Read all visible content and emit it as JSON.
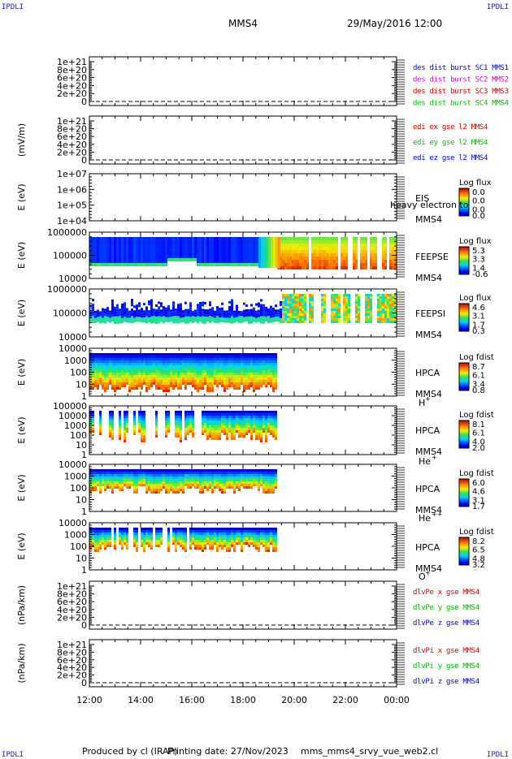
{
  "header": {
    "corner_label": "IPDLI",
    "spacecraft": "MMS4",
    "datetime": "29/May/2016 12:00"
  },
  "footer": {
    "produced": "Produced by cl (IRAP)",
    "printing": "Printing date: 27/Nov/2023",
    "script": "mms_mms4_srvy_vue_web2.cl"
  },
  "colors": {
    "red": "#cc0000",
    "magenta": "#cc00cc",
    "green": "#00bb00",
    "blue": "#0000cc",
    "dashed_zero": "#000000"
  },
  "x_axis": {
    "ticks": [
      "12:00",
      "14:00",
      "16:00",
      "18:00",
      "20:00",
      "22:00",
      "00:00"
    ],
    "range_hours": [
      12,
      24
    ]
  },
  "chart_data": [
    {
      "type": "line",
      "ylabel": "",
      "yticks": [
        "1e+21",
        "8e+20",
        "6e+20",
        "4e+20",
        "2e+20",
        "0"
      ],
      "legend": [
        {
          "text": "des dist burst SC1 MMS1",
          "color": "#0000cc"
        },
        {
          "text": "des dist burst SC2 MMS2",
          "color": "#cc00cc"
        },
        {
          "text": "des dist burst SC3 MMS3",
          "color": "#cc0000"
        },
        {
          "text": "des dist burst SC4 MMS4",
          "color": "#00bb00"
        }
      ],
      "series": []
    },
    {
      "type": "line",
      "ylabel": "(mV/m)",
      "yticks": [
        "1e+21",
        "8e+20",
        "6e+20",
        "4e+20",
        "2e+20",
        "0"
      ],
      "legend": [
        {
          "text": "edi ex gse l2 MMS4",
          "color": "#cc0000"
        },
        {
          "text": "edi ey gse l2 MMS4",
          "color": "#00bb00"
        },
        {
          "text": "edi ez gse l2 MMS4",
          "color": "#0000cc"
        }
      ],
      "series": []
    },
    {
      "type": "heatmap",
      "ylabel": "E (eV)",
      "yticks": [
        "1e+07",
        "1e+06",
        "1e+05",
        "1e+04"
      ],
      "instrument": "EIS",
      "spacecraft": "MMS4",
      "extra_text": "heavy electron to",
      "colorbar_title": "Log flux",
      "colorbar_ticks": [
        "0.0",
        "0.0",
        "0.0",
        "0.0"
      ],
      "coverage": "none"
    },
    {
      "type": "heatmap",
      "ylabel": "E (eV)",
      "yticks": [
        "1000000",
        "100000",
        "10000"
      ],
      "instrument": "FEEPSE",
      "spacecraft": "MMS4",
      "colorbar_title": "Log flux",
      "colorbar_ticks": [
        "5.3",
        "3.3",
        "1.4",
        "-0.6"
      ],
      "coverage": "full",
      "pattern": "electron"
    },
    {
      "type": "heatmap",
      "ylabel": "E (eV)",
      "yticks": [
        "1000000",
        "100000",
        "10000"
      ],
      "instrument": "FEEPSI",
      "spacecraft": "MMS4",
      "colorbar_title": "Log flux",
      "colorbar_ticks": [
        "4.6",
        "3.1",
        "1.7",
        "0.3"
      ],
      "coverage": "full",
      "pattern": "ion"
    },
    {
      "type": "heatmap",
      "ylabel": "E (eV)",
      "yticks": [
        "10000",
        "1000",
        "100",
        "10",
        "1"
      ],
      "instrument": "HPCA",
      "spacecraft": "MMS4",
      "species": "H",
      "species_sup": "+",
      "colorbar_title": "Log fdist",
      "colorbar_ticks": [
        "8.7",
        "6.1",
        "3.4",
        "0.8"
      ],
      "coverage_end_hour": 19.33,
      "pattern": "hplus"
    },
    {
      "type": "heatmap",
      "ylabel": "E (eV)",
      "yticks": [
        "100000",
        "10000",
        "1000",
        "100",
        "10",
        "1"
      ],
      "instrument": "HPCA",
      "spacecraft": "MMS4",
      "species": "He",
      "species_sup": "+",
      "colorbar_title": "Log fdist",
      "colorbar_ticks": [
        "8.1",
        "6.1",
        "4.0",
        "2.0"
      ],
      "coverage_end_hour": 19.33,
      "pattern": "heplus"
    },
    {
      "type": "heatmap",
      "ylabel": "E (eV)",
      "yticks": [
        "10000",
        "1000",
        "100",
        "10",
        "1"
      ],
      "instrument": "HPCA",
      "spacecraft": "MMS4",
      "species": "He",
      "species_sup": "++",
      "colorbar_title": "Log fdist",
      "colorbar_ticks": [
        "6.0",
        "4.6",
        "3.1",
        "1.7"
      ],
      "coverage_end_hour": 19.33,
      "pattern": "heplusplus"
    },
    {
      "type": "heatmap",
      "ylabel": "E (eV)",
      "yticks": [
        "10000",
        "1000",
        "100",
        "10",
        "1"
      ],
      "instrument": "HPCA",
      "spacecraft": "MMS4",
      "species": "O",
      "species_sup": "+",
      "colorbar_title": "Log fdist",
      "colorbar_ticks": [
        "8.2",
        "6.5",
        "4.8",
        "3.2"
      ],
      "coverage_end_hour": 19.33,
      "pattern": "oplus"
    },
    {
      "type": "line",
      "ylabel": "(nPa/km)",
      "yticks": [
        "1e+21",
        "8e+20",
        "6e+20",
        "4e+20",
        "2e+20",
        "0"
      ],
      "legend": [
        {
          "text": "dlvPe x gse MMS4",
          "color": "#cc0000"
        },
        {
          "text": "dlvPe y gse MMS4",
          "color": "#00bb00"
        },
        {
          "text": "dlvPe z gse MMS4",
          "color": "#0000cc"
        }
      ],
      "series": []
    },
    {
      "type": "line",
      "ylabel": "(nPa/km)",
      "yticks": [
        "1e+21",
        "8e+20",
        "6e+20",
        "4e+20",
        "2e+20",
        "0"
      ],
      "legend": [
        {
          "text": "dlvPi x gse MMS4",
          "color": "#cc0000"
        },
        {
          "text": "dlvPi y gse MMS4",
          "color": "#00bb00"
        },
        {
          "text": "dlvPi z gse MMS4",
          "color": "#0000cc"
        }
      ],
      "series": []
    }
  ]
}
